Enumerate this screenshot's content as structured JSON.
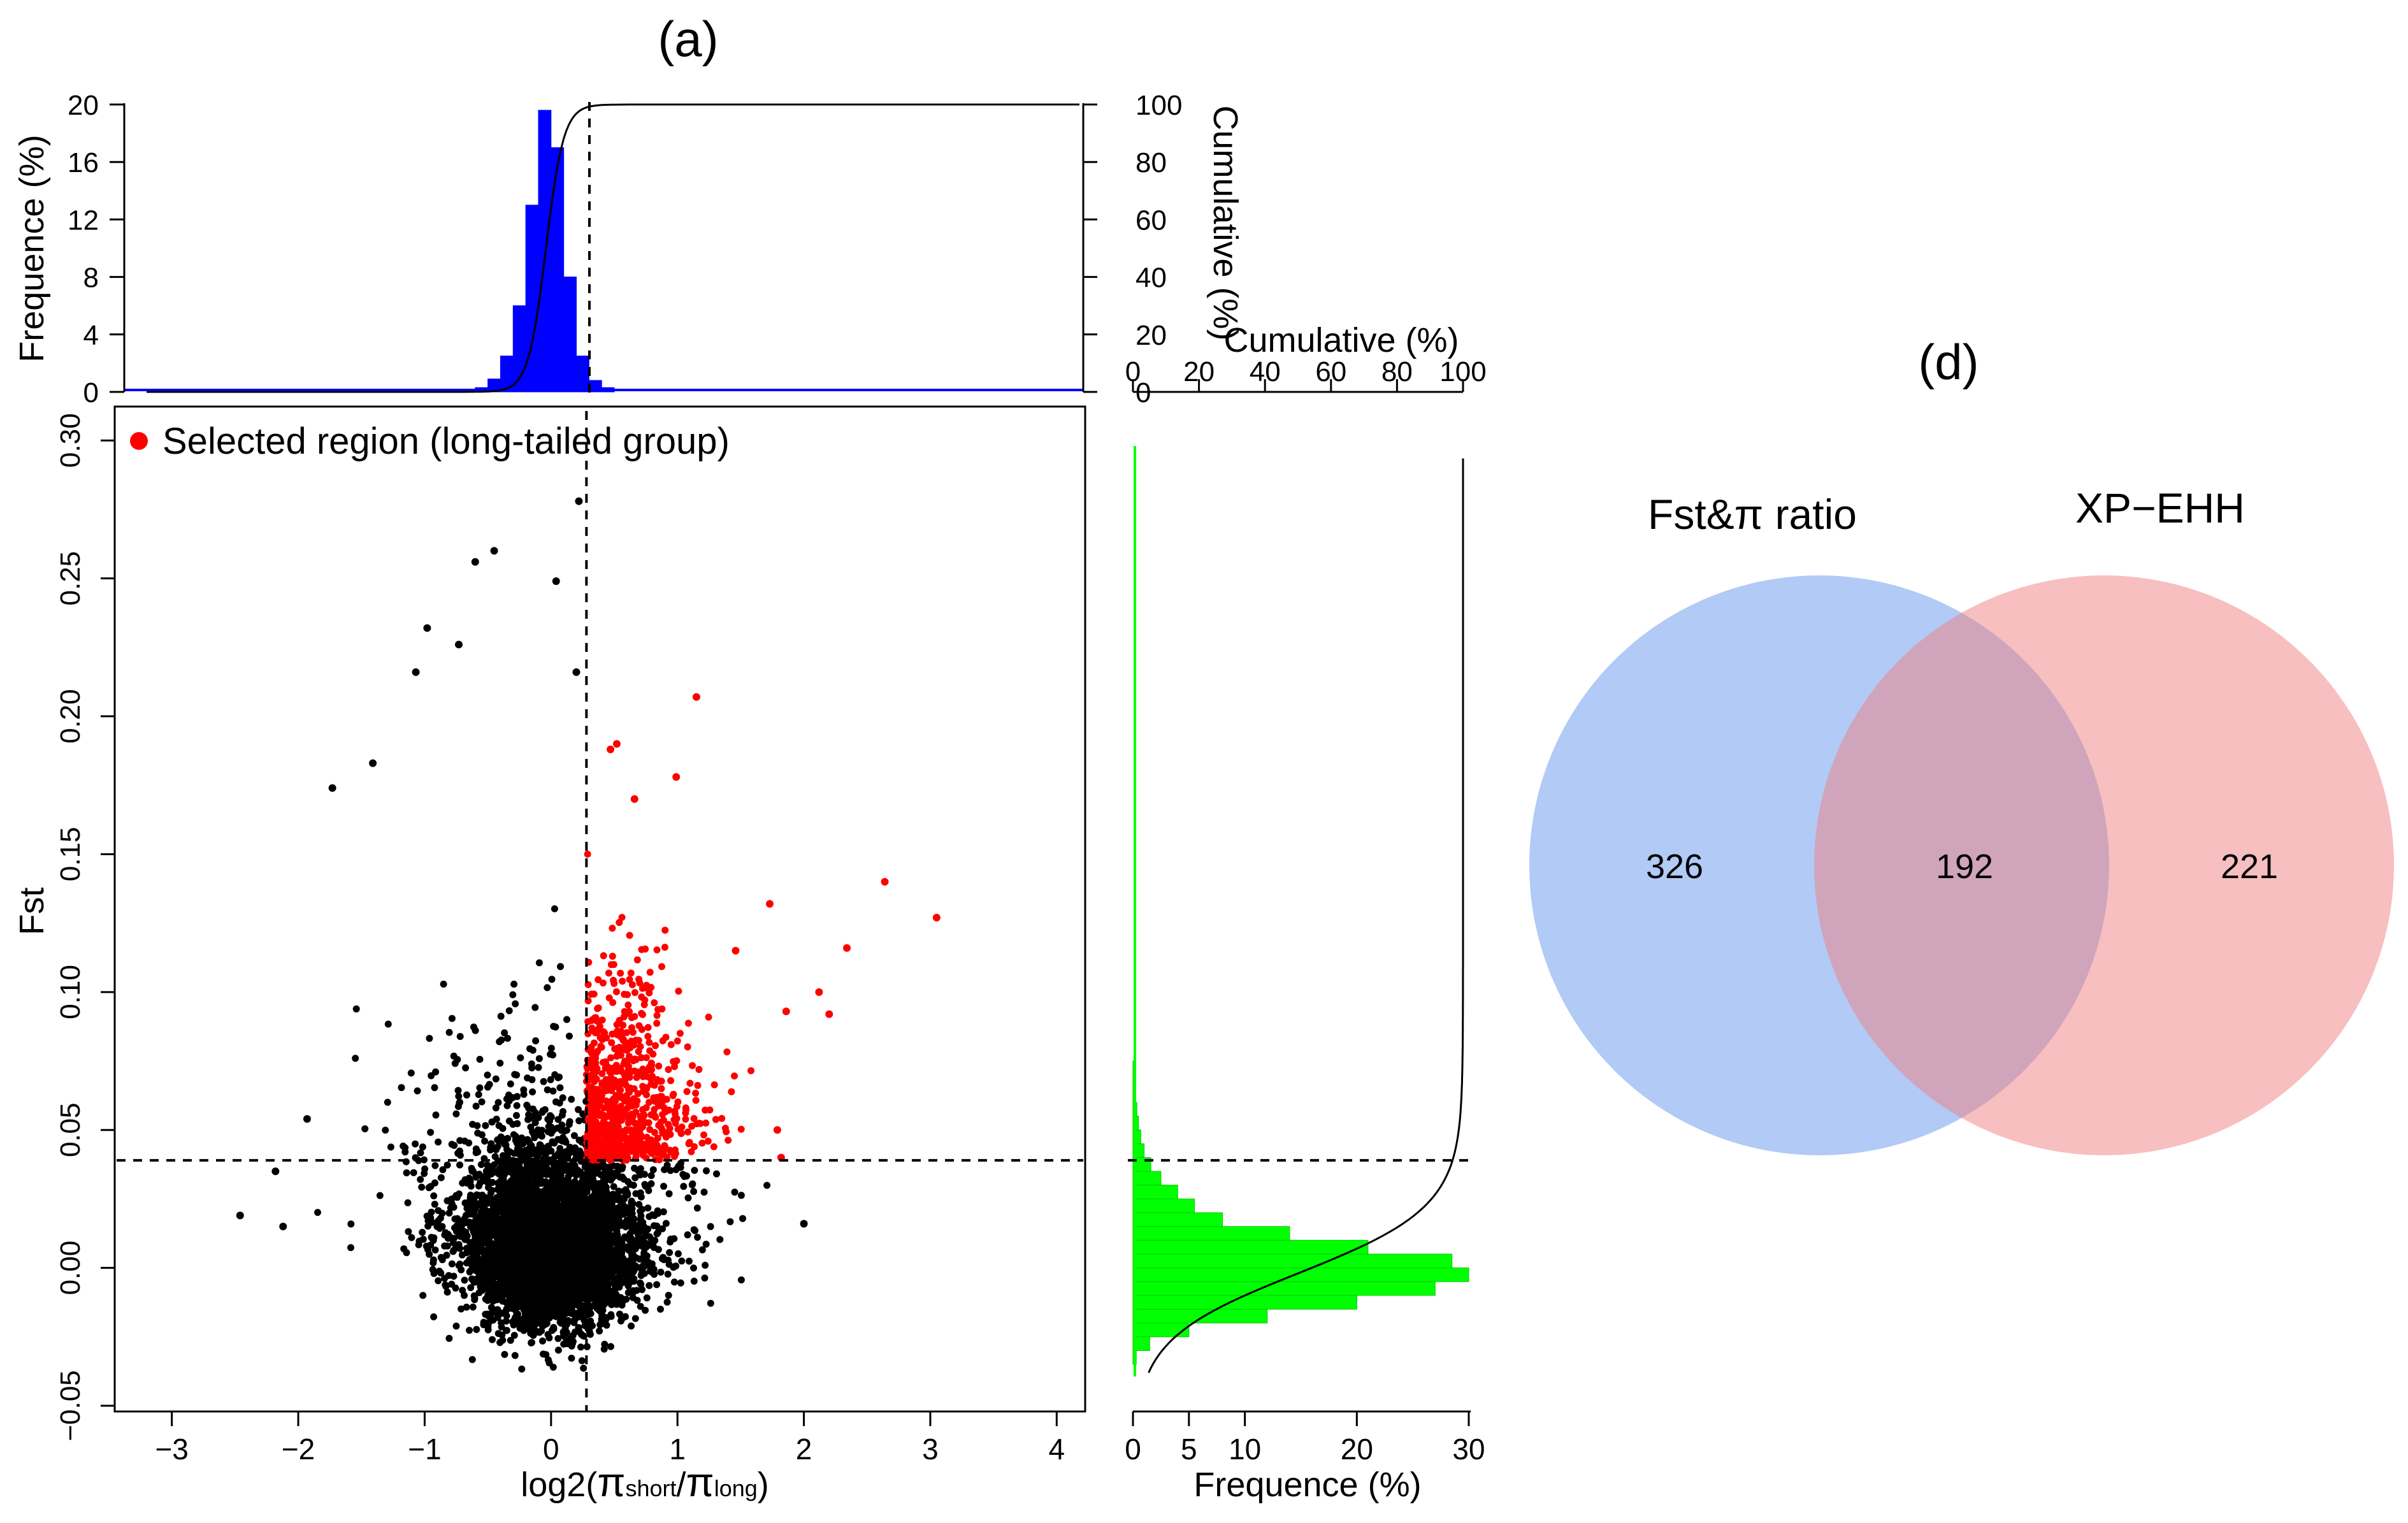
{
  "panel_a": {
    "label": "(a)",
    "chart_data": {
      "type": "scatter",
      "xlabel_main": "log2(",
      "xlabel_pi1": "π",
      "xlabel_sub1": "short",
      "xlabel_slash": "/",
      "xlabel_pi2": "π",
      "xlabel_sub2": "long",
      "xlabel_close": ")",
      "ylabel": "Fst",
      "xlim": [
        -3.2,
        4.2
      ],
      "ylim": [
        -0.05,
        0.31
      ],
      "xticks": [
        "−3",
        "−2",
        "−1",
        "0",
        "1",
        "2",
        "3",
        "4"
      ],
      "xtick_values": [
        -3,
        -2,
        -1,
        0,
        1,
        2,
        3,
        4
      ],
      "yticks": [
        "−0.05",
        "0.00",
        "0.05",
        "0.10",
        "0.15",
        "0.20",
        "0.25",
        "0.30"
      ],
      "ytick_values": [
        -0.05,
        0,
        0.05,
        0.1,
        0.15,
        0.2,
        0.25,
        0.3
      ],
      "threshold_x": 0.28,
      "threshold_y": 0.039,
      "legend": {
        "label": "Selected region (long-tailed group)",
        "color": "#ff0000",
        "position": "top-left"
      },
      "series_colors": {
        "background": "#000000",
        "selected": "#ff0000"
      },
      "notable_points": [
        {
          "x": 0.22,
          "y": 0.278
        },
        {
          "x": -0.45,
          "y": 0.26
        },
        {
          "x": 0.04,
          "y": 0.249
        },
        {
          "x": -0.6,
          "y": 0.256
        },
        {
          "x": -0.98,
          "y": 0.232
        },
        {
          "x": -0.73,
          "y": 0.226
        },
        {
          "x": -1.07,
          "y": 0.216
        },
        {
          "x": 0.2,
          "y": 0.216
        },
        {
          "x": -1.41,
          "y": 0.183
        },
        {
          "x": -1.73,
          "y": 0.174
        },
        {
          "x": -2.46,
          "y": 0.019
        },
        {
          "x": -2.12,
          "y": 0.015
        },
        {
          "x": -2.18,
          "y": 0.035
        },
        {
          "x": -1.93,
          "y": 0.054
        },
        {
          "x": 2.0,
          "y": 0.016
        }
      ],
      "selected_points": [
        {
          "x": 1.15,
          "y": 0.207
        },
        {
          "x": 0.52,
          "y": 0.19
        },
        {
          "x": 0.47,
          "y": 0.188
        },
        {
          "x": 0.99,
          "y": 0.178
        },
        {
          "x": 0.66,
          "y": 0.17
        },
        {
          "x": 2.64,
          "y": 0.14
        },
        {
          "x": 3.05,
          "y": 0.127
        },
        {
          "x": 2.34,
          "y": 0.116
        },
        {
          "x": 1.73,
          "y": 0.132
        },
        {
          "x": 1.46,
          "y": 0.115
        },
        {
          "x": 2.2,
          "y": 0.092
        },
        {
          "x": 2.12,
          "y": 0.1
        },
        {
          "x": 1.86,
          "y": 0.093
        },
        {
          "x": 1.79,
          "y": 0.05
        },
        {
          "x": 1.82,
          "y": 0.04
        }
      ]
    },
    "top_hist": {
      "ylabel": "Frequence (%)",
      "y2label": "Cumulative (%)",
      "yticks": [
        "0",
        "4",
        "8",
        "12",
        "16",
        "20"
      ],
      "ytick_values": [
        0,
        4,
        8,
        12,
        16,
        20
      ],
      "y2ticks": [
        "0",
        "20",
        "40",
        "60",
        "80",
        "100"
      ],
      "y2tick_values": [
        0,
        20,
        40,
        60,
        80,
        100
      ],
      "ylim": [
        0,
        20
      ],
      "bin_width": 0.1,
      "bins_x": [
        -0.6,
        -0.5,
        -0.4,
        -0.3,
        -0.2,
        -0.1,
        0.0,
        0.1,
        0.2,
        0.3,
        0.4
      ],
      "bins_freq": [
        0.3,
        0.9,
        2.5,
        6.0,
        13.0,
        19.6,
        17.0,
        8.0,
        2.5,
        0.8,
        0.3
      ],
      "color": "#0000ff"
    },
    "right_hist": {
      "xlabel": "Frequence (%)",
      "x2label": "Cumulative (%)",
      "xticks": [
        "0",
        "5",
        "10",
        "20",
        "30"
      ],
      "xtick_values": [
        0,
        5,
        10,
        20,
        30
      ],
      "x2ticks": [
        "0",
        "20",
        "40",
        "60",
        "80",
        "100"
      ],
      "x2tick_values": [
        0,
        20,
        40,
        60,
        80,
        100
      ],
      "xlim": [
        0,
        30
      ],
      "bin_width": 0.005,
      "bins_y": [
        -0.035,
        -0.03,
        -0.025,
        -0.02,
        -0.015,
        -0.01,
        -0.005,
        0.0,
        0.005,
        0.01,
        0.015,
        0.02,
        0.025,
        0.03,
        0.035,
        0.04,
        0.045,
        0.05,
        0.055,
        0.06,
        0.065,
        0.07
      ],
      "bins_freq": [
        0.3,
        1.5,
        5.0,
        12.0,
        20.0,
        27.0,
        30.0,
        28.5,
        21.0,
        14.0,
        8.0,
        5.5,
        4.0,
        2.5,
        1.6,
        1.0,
        0.7,
        0.5,
        0.35,
        0.25,
        0.15,
        0.1
      ],
      "color": "#00ff00"
    }
  },
  "panel_d": {
    "label": "(d)",
    "chart_data": {
      "type": "venn",
      "sets": [
        {
          "name": "Fst&π ratio",
          "only": "326",
          "color": "#6495ed"
        },
        {
          "name": "XP−EHH",
          "only": "221",
          "color": "#f08080"
        }
      ],
      "intersection": "192"
    }
  }
}
